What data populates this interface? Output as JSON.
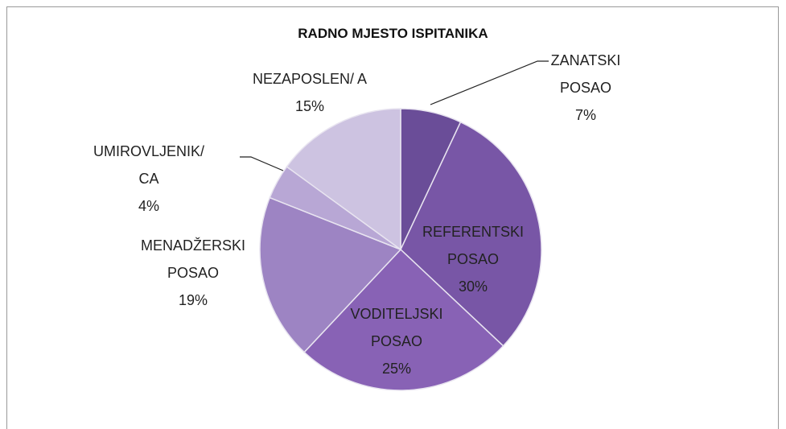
{
  "chart_data": {
    "type": "pie",
    "title": "RADNO MJESTO ISPITANIKA",
    "categories": [
      "ZANATSKI POSAO",
      "REFERENTSKI POSAO",
      "VODITELJSKI POSAO",
      "MENADŽERSKI POSAO",
      "UMIROVLJENIK/ CA",
      "NEZAPOSLEN/ A"
    ],
    "values": [
      7,
      30,
      25,
      19,
      4,
      15
    ],
    "value_labels": [
      "7%",
      "30%",
      "25%",
      "19%",
      "4%",
      "15%"
    ],
    "colors": [
      "#6a4d98",
      "#7856a6",
      "#8862b5",
      "#9d84c3",
      "#b8a7d5",
      "#cdc3e1"
    ]
  }
}
